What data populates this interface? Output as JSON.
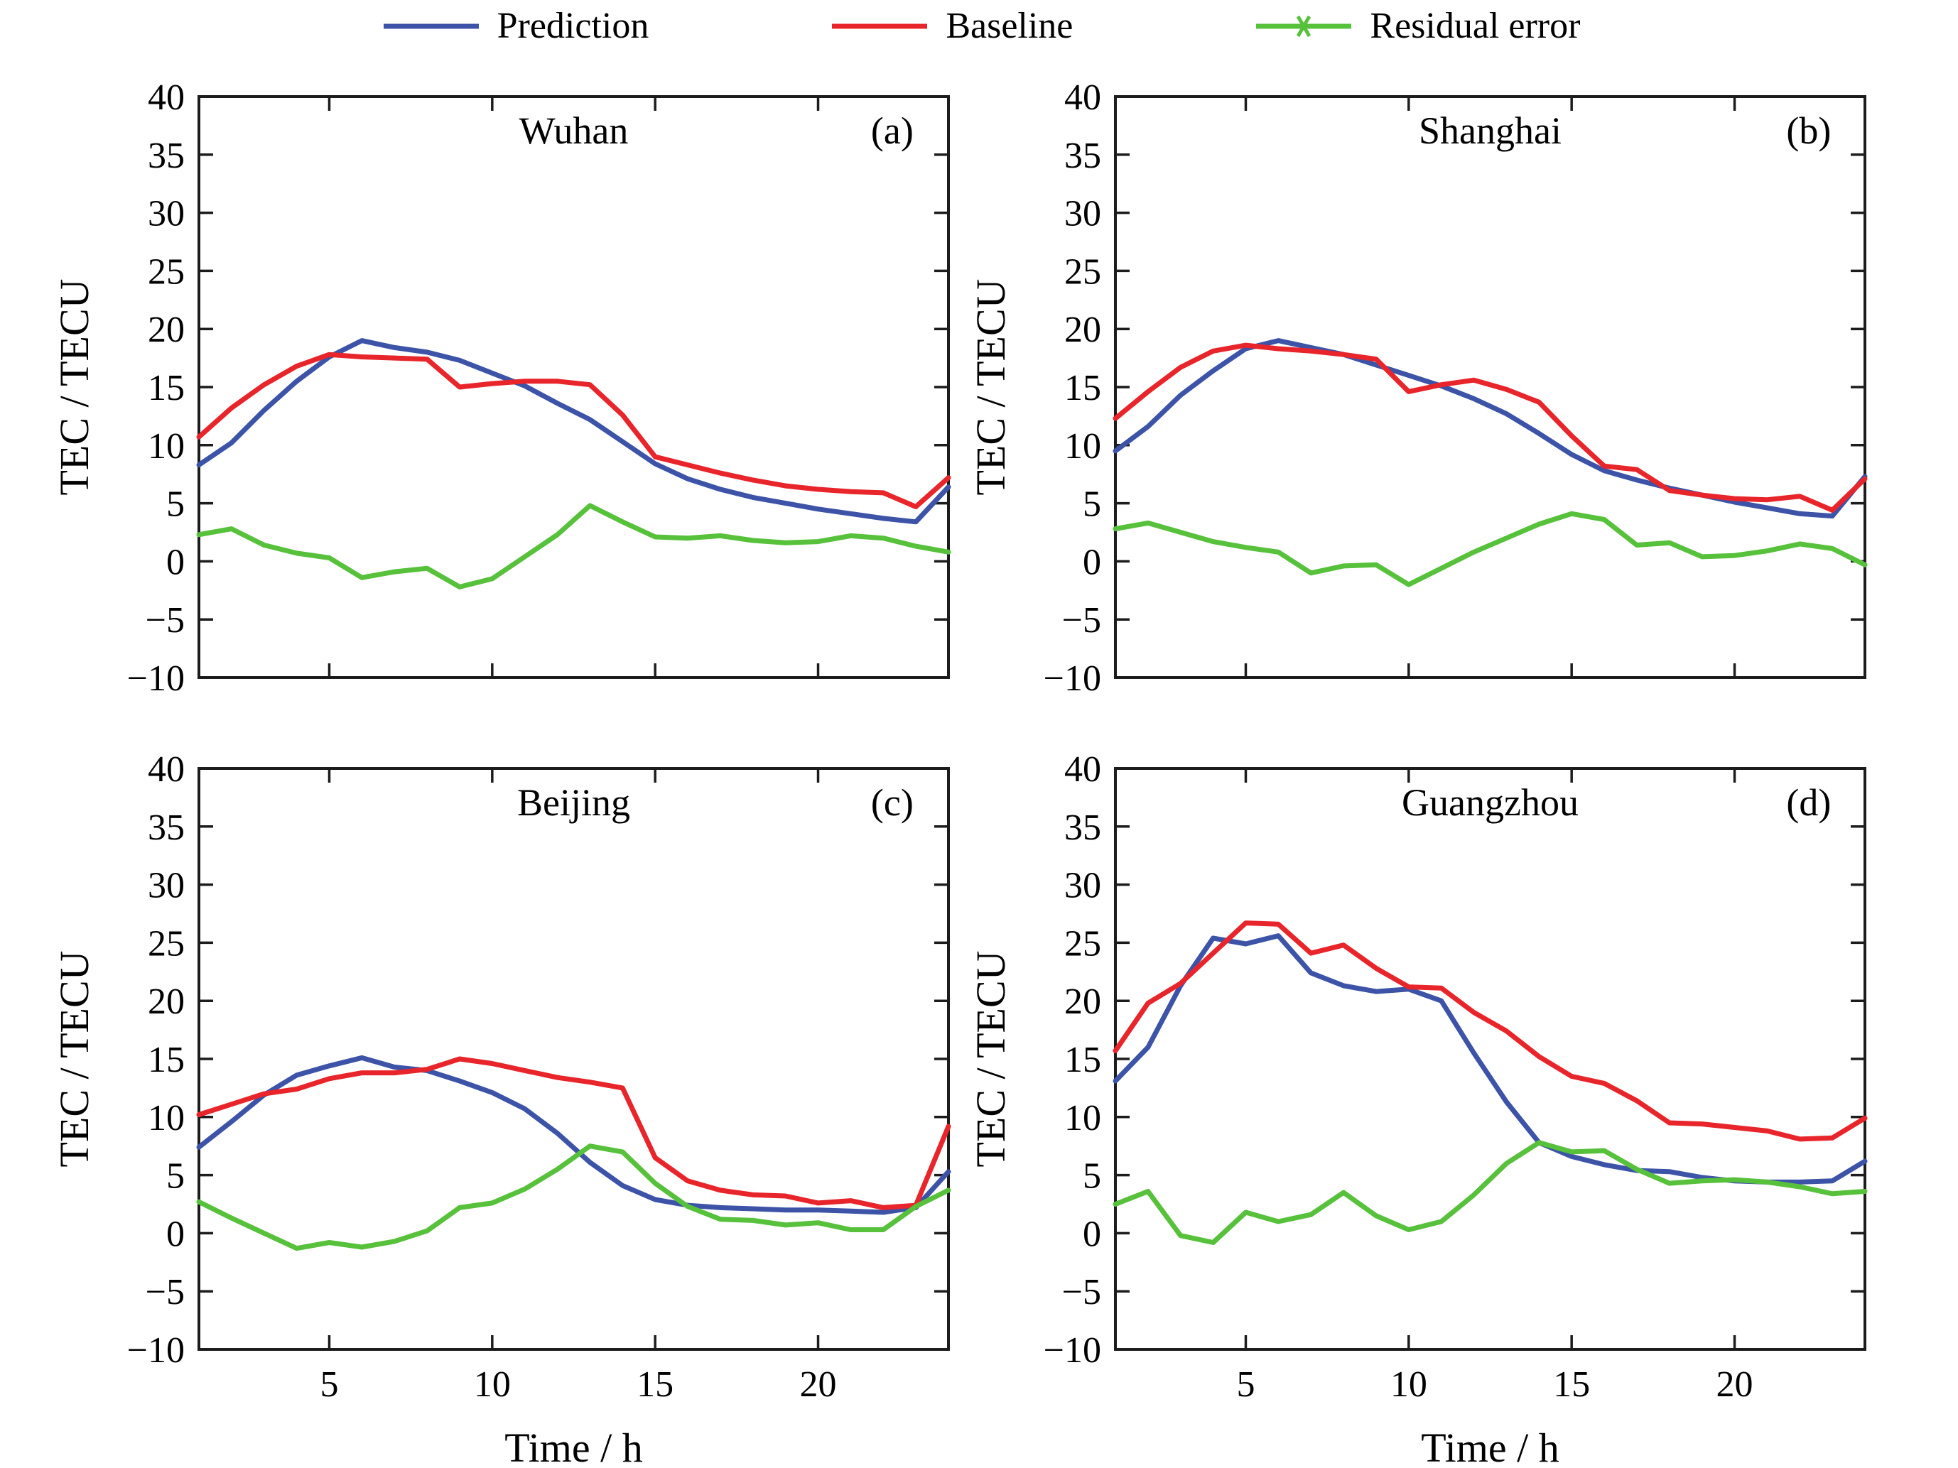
{
  "figure": {
    "background": "#ffffff",
    "axis_color": "#1c1c1c",
    "prediction_color": "#3c53a7",
    "baseline_color": "#e8252b",
    "residual_color": "#57c13c"
  },
  "legend": {
    "items": [
      {
        "label": "Prediction",
        "color": "#3c53a7",
        "marker": "line"
      },
      {
        "label": "Baseline",
        "color": "#e8252b",
        "marker": "line"
      },
      {
        "label": "Residual error",
        "color": "#57c13c",
        "marker": "line-asterisk"
      }
    ]
  },
  "axes": {
    "ylabel": "TEC / TECU",
    "xlabel": "Time / h",
    "ymin": -10,
    "ymax": 40,
    "yticks": [
      40,
      35,
      30,
      25,
      20,
      15,
      10,
      5,
      0,
      -5,
      -10
    ],
    "ytick_labels": [
      "40",
      "35",
      "30",
      "25",
      "20",
      "15",
      "10",
      "5",
      "0",
      "−5",
      "−10"
    ],
    "xmin": 1,
    "xmax": 24,
    "xticks": [
      5,
      10,
      15,
      20
    ],
    "xtick_labels": [
      "5",
      "10",
      "15",
      "20"
    ],
    "grid": false,
    "legend_position": "top-center"
  },
  "chart_data": [
    {
      "type": "line",
      "station": "Wuhan",
      "panel_label": "(a)",
      "show_x_tick_labels": false,
      "x": [
        1,
        2,
        3,
        4,
        5,
        6,
        7,
        8,
        9,
        10,
        11,
        12,
        13,
        14,
        15,
        16,
        17,
        18,
        19,
        20,
        21,
        22,
        23,
        24
      ],
      "series": [
        {
          "name": "Prediction",
          "color": "#3c53a7",
          "values": [
            8.3,
            10.2,
            13.0,
            15.5,
            17.6,
            19.0,
            18.4,
            18.0,
            17.3,
            16.2,
            15.1,
            13.6,
            12.2,
            10.3,
            8.4,
            7.1,
            6.2,
            5.5,
            5.0,
            4.5,
            4.1,
            3.7,
            3.4,
            6.4
          ]
        },
        {
          "name": "Baseline",
          "color": "#e8252b",
          "values": [
            10.7,
            13.2,
            15.2,
            16.8,
            17.8,
            17.6,
            17.5,
            17.4,
            15.0,
            15.3,
            15.5,
            15.5,
            15.2,
            12.6,
            9.0,
            8.3,
            7.6,
            7.0,
            6.5,
            6.2,
            6.0,
            5.9,
            4.7,
            7.2
          ]
        },
        {
          "name": "Residual error",
          "color": "#57c13c",
          "values": [
            2.3,
            2.8,
            1.4,
            0.7,
            0.3,
            -1.4,
            -0.9,
            -0.6,
            -2.2,
            -1.5,
            0.4,
            2.3,
            4.8,
            3.4,
            2.1,
            2.0,
            2.2,
            1.8,
            1.6,
            1.7,
            2.2,
            2.0,
            1.3,
            0.8
          ]
        }
      ]
    },
    {
      "type": "line",
      "station": "Shanghai",
      "panel_label": "(b)",
      "show_x_tick_labels": false,
      "x": [
        1,
        2,
        3,
        4,
        5,
        6,
        7,
        8,
        9,
        10,
        11,
        12,
        13,
        14,
        15,
        16,
        17,
        18,
        19,
        20,
        21,
        22,
        23,
        24
      ],
      "series": [
        {
          "name": "Prediction",
          "color": "#3c53a7",
          "values": [
            9.5,
            11.6,
            14.3,
            16.4,
            18.3,
            19.0,
            18.4,
            17.8,
            16.9,
            16.0,
            15.1,
            14.0,
            12.7,
            11.0,
            9.2,
            7.8,
            7.0,
            6.3,
            5.7,
            5.1,
            4.6,
            4.1,
            3.9,
            7.3
          ]
        },
        {
          "name": "Baseline",
          "color": "#e8252b",
          "values": [
            12.3,
            14.6,
            16.7,
            18.1,
            18.6,
            18.3,
            18.1,
            17.8,
            17.4,
            14.6,
            15.2,
            15.6,
            14.8,
            13.7,
            10.8,
            8.2,
            7.9,
            6.1,
            5.7,
            5.4,
            5.3,
            5.6,
            4.4,
            7.1
          ]
        },
        {
          "name": "Residual error",
          "color": "#57c13c",
          "values": [
            2.8,
            3.3,
            2.5,
            1.7,
            1.2,
            0.8,
            -1.0,
            -0.4,
            -0.3,
            -2.0,
            -0.6,
            0.8,
            2.0,
            3.2,
            4.1,
            3.6,
            1.4,
            1.6,
            0.4,
            0.5,
            0.9,
            1.5,
            1.1,
            -0.3
          ]
        }
      ]
    },
    {
      "type": "line",
      "station": "Beijing",
      "panel_label": "(c)",
      "show_x_tick_labels": true,
      "x": [
        1,
        2,
        3,
        4,
        5,
        6,
        7,
        8,
        9,
        10,
        11,
        12,
        13,
        14,
        15,
        16,
        17,
        18,
        19,
        20,
        21,
        22,
        23,
        24
      ],
      "series": [
        {
          "name": "Prediction",
          "color": "#3c53a7",
          "values": [
            7.4,
            9.6,
            11.9,
            13.6,
            14.4,
            15.1,
            14.3,
            14.0,
            13.1,
            12.1,
            10.7,
            8.6,
            6.1,
            4.1,
            2.9,
            2.4,
            2.2,
            2.1,
            2.0,
            2.0,
            1.9,
            1.8,
            2.2,
            5.3
          ]
        },
        {
          "name": "Baseline",
          "color": "#e8252b",
          "values": [
            10.2,
            11.1,
            12.0,
            12.4,
            13.3,
            13.8,
            13.8,
            14.1,
            15.0,
            14.6,
            14.0,
            13.4,
            13.0,
            12.5,
            6.5,
            4.5,
            3.7,
            3.3,
            3.2,
            2.6,
            2.8,
            2.2,
            2.4,
            9.2
          ]
        },
        {
          "name": "Residual error",
          "color": "#57c13c",
          "values": [
            2.7,
            1.3,
            0.0,
            -1.3,
            -0.8,
            -1.2,
            -0.7,
            0.2,
            2.2,
            2.6,
            3.8,
            5.5,
            7.5,
            7.0,
            4.3,
            2.3,
            1.2,
            1.1,
            0.7,
            0.9,
            0.3,
            0.3,
            2.3,
            3.7
          ]
        }
      ]
    },
    {
      "type": "line",
      "station": "Guangzhou",
      "panel_label": "(d)",
      "show_x_tick_labels": true,
      "x": [
        1,
        2,
        3,
        4,
        5,
        6,
        7,
        8,
        9,
        10,
        11,
        12,
        13,
        14,
        15,
        16,
        17,
        18,
        19,
        20,
        21,
        22,
        23,
        24
      ],
      "series": [
        {
          "name": "Prediction",
          "color": "#3c53a7",
          "values": [
            13.1,
            16.0,
            21.3,
            25.4,
            24.9,
            25.6,
            22.4,
            21.3,
            20.8,
            21.0,
            20.0,
            15.5,
            11.3,
            7.8,
            6.6,
            5.9,
            5.4,
            5.3,
            4.8,
            4.5,
            4.4,
            4.4,
            4.5,
            6.2
          ]
        },
        {
          "name": "Baseline",
          "color": "#e8252b",
          "values": [
            15.7,
            19.8,
            21.5,
            24.1,
            26.7,
            26.6,
            24.1,
            24.8,
            22.8,
            21.2,
            21.1,
            19.0,
            17.4,
            15.2,
            13.5,
            12.9,
            11.4,
            9.5,
            9.4,
            9.1,
            8.8,
            8.1,
            8.2,
            9.9
          ]
        },
        {
          "name": "Residual error",
          "color": "#57c13c",
          "values": [
            2.5,
            3.6,
            -0.2,
            -0.8,
            1.8,
            1.0,
            1.6,
            3.5,
            1.5,
            0.3,
            1.0,
            3.3,
            6.0,
            7.8,
            7.0,
            7.1,
            5.5,
            4.3,
            4.5,
            4.6,
            4.4,
            4.0,
            3.4,
            3.6
          ]
        }
      ]
    }
  ]
}
